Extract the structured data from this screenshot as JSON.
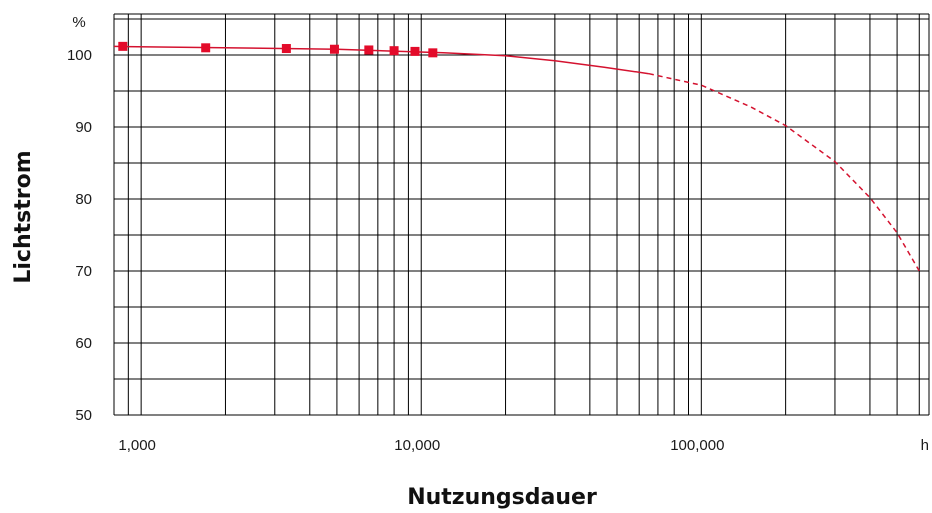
{
  "chart_data": {
    "type": "line",
    "title": "",
    "xlabel": "Nutzungsdauer",
    "ylabel": "Lichtstrom",
    "x_unit": "h",
    "y_unit": "%",
    "x_scale": "log",
    "xlim": [
      800,
      650000
    ],
    "ylim": [
      50,
      105
    ],
    "grid": true,
    "x_tick_labels": [
      {
        "value": 1000,
        "label": "1,000"
      },
      {
        "value": 10000,
        "label": "10,000"
      },
      {
        "value": 100000,
        "label": "100,000"
      }
    ],
    "y_ticks": [
      50,
      60,
      70,
      80,
      90,
      100
    ],
    "series": [
      {
        "style": "markers",
        "color": "#e30b2a",
        "x": [
          860,
          1700,
          3300,
          4900,
          6500,
          8000,
          9500,
          11000
        ],
        "y": [
          101.2,
          101.0,
          100.9,
          100.8,
          100.7,
          100.6,
          100.5,
          100.3
        ]
      },
      {
        "style": "solid-line",
        "color": "#d4122f",
        "x": [
          800,
          5000,
          12000,
          20000,
          30000,
          45000,
          65000
        ],
        "y": [
          101.2,
          100.8,
          100.3,
          99.9,
          99.2,
          98.3,
          97.4
        ]
      },
      {
        "style": "dashed-line",
        "color": "#d4122f",
        "x": [
          65000,
          100000,
          150000,
          200000,
          300000,
          400000,
          500000,
          600000
        ],
        "y": [
          97.4,
          95.8,
          92.8,
          90.2,
          85.2,
          80.2,
          75.3,
          70.0
        ]
      }
    ]
  }
}
